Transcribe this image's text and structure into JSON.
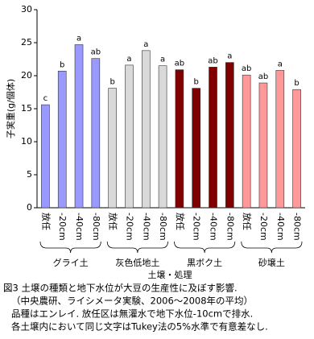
{
  "chart_data": {
    "type": "bar",
    "y_label": "子実重(g/個体)",
    "x_label": "土壌・処理",
    "categories": [
      "放任",
      "-20cm",
      "-40cm",
      "-80cm"
    ],
    "series": [
      {
        "name": "グライ土",
        "color": "#9999ff",
        "values": [
          15.6,
          20.7,
          24.7,
          22.6
        ],
        "letters": [
          "c",
          "b",
          "a",
          "ab"
        ]
      },
      {
        "name": "灰色低地土",
        "color": "#d9d9d9",
        "values": [
          18.1,
          21.6,
          23.8,
          21.5
        ],
        "letters": [
          "b",
          "a",
          "a",
          "a"
        ]
      },
      {
        "name": "黒ボク土",
        "color": "#800000",
        "values": [
          20.9,
          18.1,
          21.3,
          22.0
        ],
        "letters": [
          "ab",
          "b",
          "ab",
          "a"
        ]
      },
      {
        "name": "砂壌土",
        "color": "#ff9999",
        "values": [
          20.1,
          18.9,
          20.8,
          17.9
        ],
        "letters": [
          "ab",
          "ab",
          "a",
          "b"
        ]
      }
    ],
    "ylim": [
      0,
      30
    ],
    "yticks": [
      0,
      5,
      10,
      15,
      20,
      25,
      30
    ],
    "caption": [
      "図3 土壌の種類と地下水位が大豆の生産性に及ぼす影響.",
      "（中央農研、ライシメータ実験、2006～2008年の平均）",
      "品種はエンレイ. 放任区は無灌水で地下水位-10cmで排水.",
      "各土壌内において同じ文字はTukey法の5%水準で有意差なし."
    ]
  }
}
